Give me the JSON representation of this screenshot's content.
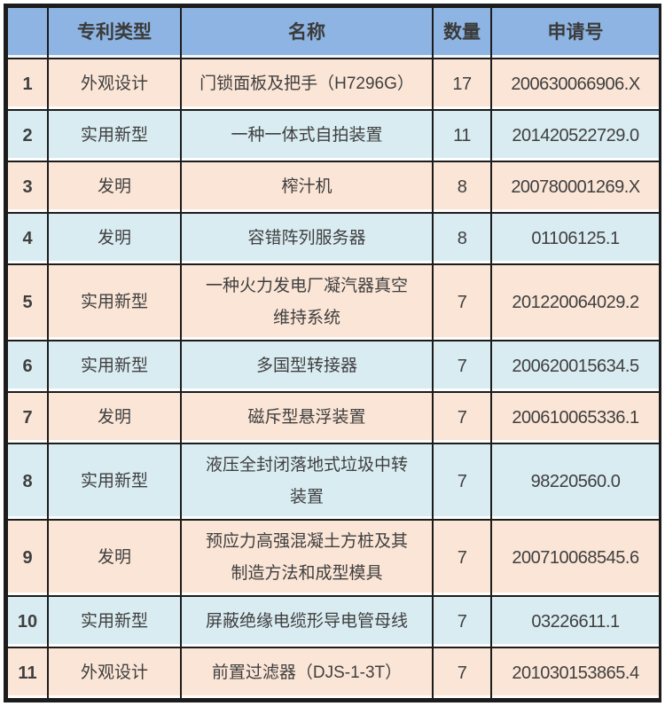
{
  "colors": {
    "header_bg": "#8DB4E2",
    "row_peach": "#FBE5D6",
    "row_blue": "#D9ECF2",
    "border": "#1C1C1C",
    "text": "#3F3F3F"
  },
  "chart_data": {
    "type": "table",
    "title": "",
    "columns": [
      "",
      "专利类型",
      "名称",
      "数量",
      "申请号"
    ],
    "rows": [
      [
        "1",
        "外观设计",
        "门锁面板及把手（H7296G）",
        "17",
        "200630066906.X"
      ],
      [
        "2",
        "实用新型",
        "一种一体式自拍装置",
        "11",
        "201420522729.0"
      ],
      [
        "3",
        "发明",
        "榨汁机",
        "8",
        "200780001269.X"
      ],
      [
        "4",
        "发明",
        "容错阵列服务器",
        "8",
        "01106125.1"
      ],
      [
        "5",
        "实用新型",
        "一种火力发电厂凝汽器真空\n维持系统",
        "7",
        "201220064029.2"
      ],
      [
        "6",
        "实用新型",
        "多国型转接器",
        "7",
        "200620015634.5"
      ],
      [
        "7",
        "发明",
        "磁斥型悬浮装置",
        "7",
        "200610065336.1"
      ],
      [
        "8",
        "实用新型",
        "液压全封闭落地式垃圾中转\n装置",
        "7",
        "98220560.0"
      ],
      [
        "9",
        "发明",
        "预应力高强混凝土方桩及其\n制造方法和成型模具",
        "7",
        "200710068545.6"
      ],
      [
        "10",
        "实用新型",
        "屏蔽绝缘电缆形导电管母线",
        "7",
        "03226611.1"
      ],
      [
        "11",
        "外观设计",
        "前置过滤器（DJS-1-3T）",
        "7",
        "201030153865.4"
      ]
    ]
  }
}
